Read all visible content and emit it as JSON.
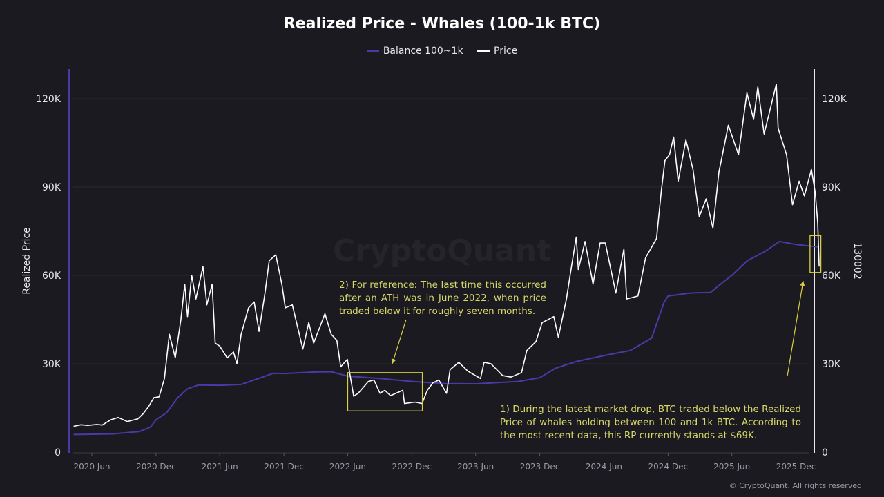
{
  "chart_data": {
    "type": "line",
    "title": "Realized Price - Whales (100-1k BTC)",
    "legend_position": "top",
    "ylabel_left": "Realized Price",
    "ylabel_right": "130002",
    "ylim": [
      0,
      130000
    ],
    "grid": true,
    "y_ticks_left": [
      "0",
      "30K",
      "60K",
      "90K",
      "120K"
    ],
    "y_ticks_right": [
      "0",
      "30K",
      "60K",
      "90K",
      "120K"
    ],
    "y_tick_values": [
      0,
      30000,
      60000,
      90000,
      120000
    ],
    "x_ticks": [
      "2020 Jun",
      "2020 Dec",
      "2021 Jun",
      "2021 Dec",
      "2022 Jun",
      "2022 Dec",
      "2023 Jun",
      "2023 Dec",
      "2024 Jun",
      "2024 Dec",
      "2025 Jun",
      "2025 Dec"
    ],
    "x_tick_dates": [
      "2020-06-01",
      "2020-12-01",
      "2021-06-01",
      "2021-12-01",
      "2022-06-01",
      "2022-12-01",
      "2023-06-01",
      "2023-12-01",
      "2024-06-01",
      "2024-12-01",
      "2025-06-01",
      "2025-12-01"
    ],
    "series": [
      {
        "name": "Balance 100~1k",
        "color": "#4a3aa8",
        "points": [
          [
            "2020-04-10",
            6000
          ],
          [
            "2020-08-01",
            6200
          ],
          [
            "2020-10-15",
            7000
          ],
          [
            "2020-11-15",
            8500
          ],
          [
            "2020-12-01",
            11000
          ],
          [
            "2021-01-01",
            13500
          ],
          [
            "2021-02-01",
            18500
          ],
          [
            "2021-03-01",
            21500
          ],
          [
            "2021-04-01",
            22800
          ],
          [
            "2021-06-01",
            22700
          ],
          [
            "2021-08-01",
            23000
          ],
          [
            "2021-10-01",
            25500
          ],
          [
            "2021-11-01",
            26800
          ],
          [
            "2021-12-01",
            26700
          ],
          [
            "2022-03-01",
            27200
          ],
          [
            "2022-04-15",
            27300
          ],
          [
            "2022-06-01",
            25800
          ],
          [
            "2022-09-01",
            25000
          ],
          [
            "2022-12-01",
            24000
          ],
          [
            "2023-03-01",
            23300
          ],
          [
            "2023-06-01",
            23200
          ],
          [
            "2023-10-01",
            24000
          ],
          [
            "2023-12-01",
            25300
          ],
          [
            "2024-01-15",
            28500
          ],
          [
            "2024-03-15",
            30800
          ],
          [
            "2024-06-01",
            32800
          ],
          [
            "2024-08-15",
            34500
          ],
          [
            "2024-10-15",
            38700
          ],
          [
            "2024-11-20",
            51000
          ],
          [
            "2024-12-01",
            53000
          ],
          [
            "2025-02-01",
            54000
          ],
          [
            "2025-04-01",
            54200
          ],
          [
            "2025-05-10",
            58000
          ],
          [
            "2025-06-01",
            60000
          ],
          [
            "2025-07-15",
            65000
          ],
          [
            "2025-09-01",
            68000
          ],
          [
            "2025-10-15",
            71500
          ],
          [
            "2025-12-01",
            70500
          ],
          [
            "2026-02-05",
            69600
          ]
        ]
      },
      {
        "name": "Price",
        "color": "#ffffff",
        "points": [
          [
            "2020-04-10",
            8800
          ],
          [
            "2020-05-01",
            9300
          ],
          [
            "2020-05-20",
            9100
          ],
          [
            "2020-06-15",
            9400
          ],
          [
            "2020-07-01",
            9200
          ],
          [
            "2020-07-25",
            11000
          ],
          [
            "2020-08-15",
            11800
          ],
          [
            "2020-09-10",
            10400
          ],
          [
            "2020-10-10",
            11300
          ],
          [
            "2020-10-25",
            13000
          ],
          [
            "2020-11-10",
            15500
          ],
          [
            "2020-11-25",
            18500
          ],
          [
            "2020-12-10",
            18800
          ],
          [
            "2020-12-25",
            25000
          ],
          [
            "2021-01-08",
            40000
          ],
          [
            "2021-01-25",
            32000
          ],
          [
            "2021-02-10",
            45000
          ],
          [
            "2021-02-21",
            57000
          ],
          [
            "2021-03-01",
            46000
          ],
          [
            "2021-03-13",
            60000
          ],
          [
            "2021-03-25",
            52000
          ],
          [
            "2021-04-14",
            63000
          ],
          [
            "2021-04-25",
            50000
          ],
          [
            "2021-05-10",
            57000
          ],
          [
            "2021-05-19",
            37000
          ],
          [
            "2021-06-01",
            36000
          ],
          [
            "2021-06-22",
            32000
          ],
          [
            "2021-07-10",
            34000
          ],
          [
            "2021-07-20",
            30000
          ],
          [
            "2021-08-01",
            40000
          ],
          [
            "2021-08-22",
            49000
          ],
          [
            "2021-09-07",
            51000
          ],
          [
            "2021-09-21",
            41000
          ],
          [
            "2021-10-08",
            54000
          ],
          [
            "2021-10-20",
            65000
          ],
          [
            "2021-11-08",
            67000
          ],
          [
            "2021-11-25",
            57000
          ],
          [
            "2021-12-05",
            49000
          ],
          [
            "2021-12-25",
            50000
          ],
          [
            "2022-01-10",
            42000
          ],
          [
            "2022-01-24",
            35000
          ],
          [
            "2022-02-10",
            44000
          ],
          [
            "2022-02-24",
            37000
          ],
          [
            "2022-03-28",
            47000
          ],
          [
            "2022-04-15",
            40000
          ],
          [
            "2022-05-01",
            38000
          ],
          [
            "2022-05-12",
            29000
          ],
          [
            "2022-05-31",
            31500
          ],
          [
            "2022-06-18",
            19000
          ],
          [
            "2022-07-01",
            20000
          ],
          [
            "2022-07-30",
            24000
          ],
          [
            "2022-08-15",
            24500
          ],
          [
            "2022-09-01",
            20000
          ],
          [
            "2022-09-15",
            21000
          ],
          [
            "2022-10-01",
            19200
          ],
          [
            "2022-11-05",
            21000
          ],
          [
            "2022-11-10",
            16500
          ],
          [
            "2022-12-10",
            17000
          ],
          [
            "2022-12-30",
            16500
          ],
          [
            "2023-01-14",
            21000
          ],
          [
            "2023-01-30",
            23500
          ],
          [
            "2023-02-16",
            24500
          ],
          [
            "2023-03-10",
            20000
          ],
          [
            "2023-03-20",
            28000
          ],
          [
            "2023-04-14",
            30500
          ],
          [
            "2023-05-10",
            27500
          ],
          [
            "2023-06-15",
            25000
          ],
          [
            "2023-06-25",
            30500
          ],
          [
            "2023-07-15",
            30000
          ],
          [
            "2023-08-17",
            26000
          ],
          [
            "2023-09-10",
            25500
          ],
          [
            "2023-10-10",
            27000
          ],
          [
            "2023-10-25",
            34500
          ],
          [
            "2023-11-20",
            37500
          ],
          [
            "2023-12-08",
            44000
          ],
          [
            "2024-01-10",
            46000
          ],
          [
            "2024-01-23",
            39000
          ],
          [
            "2024-02-15",
            52000
          ],
          [
            "2024-02-28",
            62000
          ],
          [
            "2024-03-14",
            73000
          ],
          [
            "2024-03-20",
            62000
          ],
          [
            "2024-04-08",
            71500
          ],
          [
            "2024-05-01",
            57000
          ],
          [
            "2024-05-21",
            71000
          ],
          [
            "2024-06-05",
            71000
          ],
          [
            "2024-07-05",
            54000
          ],
          [
            "2024-07-28",
            69000
          ],
          [
            "2024-08-05",
            52000
          ],
          [
            "2024-09-06",
            53000
          ],
          [
            "2024-09-28",
            66000
          ],
          [
            "2024-10-29",
            72500
          ],
          [
            "2024-11-12",
            89000
          ],
          [
            "2024-11-22",
            99000
          ],
          [
            "2024-12-05",
            101000
          ],
          [
            "2024-12-17",
            107000
          ],
          [
            "2024-12-30",
            92000
          ],
          [
            "2025-01-21",
            106000
          ],
          [
            "2025-02-10",
            96000
          ],
          [
            "2025-02-28",
            80000
          ],
          [
            "2025-03-20",
            86000
          ],
          [
            "2025-04-08",
            76000
          ],
          [
            "2025-04-25",
            95000
          ],
          [
            "2025-05-22",
            111000
          ],
          [
            "2025-06-20",
            101000
          ],
          [
            "2025-07-14",
            122000
          ],
          [
            "2025-08-02",
            113000
          ],
          [
            "2025-08-14",
            124000
          ],
          [
            "2025-09-01",
            108000
          ],
          [
            "2025-10-06",
            125000
          ],
          [
            "2025-10-11",
            110000
          ],
          [
            "2025-11-04",
            101000
          ],
          [
            "2025-11-21",
            84000
          ],
          [
            "2025-12-10",
            92000
          ],
          [
            "2025-12-25",
            87000
          ],
          [
            "2026-01-14",
            96000
          ],
          [
            "2026-01-25",
            88000
          ],
          [
            "2026-02-01",
            78000
          ],
          [
            "2026-02-05",
            63000
          ]
        ]
      }
    ],
    "annotations": [
      {
        "text": "1) During the latest market drop, BTC traded below the Realized Price of whales holding between 100 and 1k BTC. According to the most recent data, this RP currently stands at $69K.",
        "color": "#d8d86a"
      },
      {
        "text": "2) For reference: The last time this occurred after an ATH was in June 2022, when price traded below it for roughly seven months.",
        "color": "#d8d86a"
      }
    ],
    "highlight_boxes": [
      {
        "from": "2022-06-01",
        "to": "2022-12-31",
        "y_range": [
          14000,
          27000
        ]
      },
      {
        "from": "2026-01-10",
        "to": "2026-02-10",
        "y_range": [
          61000,
          73500
        ]
      }
    ],
    "watermark": "CryptoQuant"
  },
  "copyright": "© CryptoQuant. All rights reserved"
}
